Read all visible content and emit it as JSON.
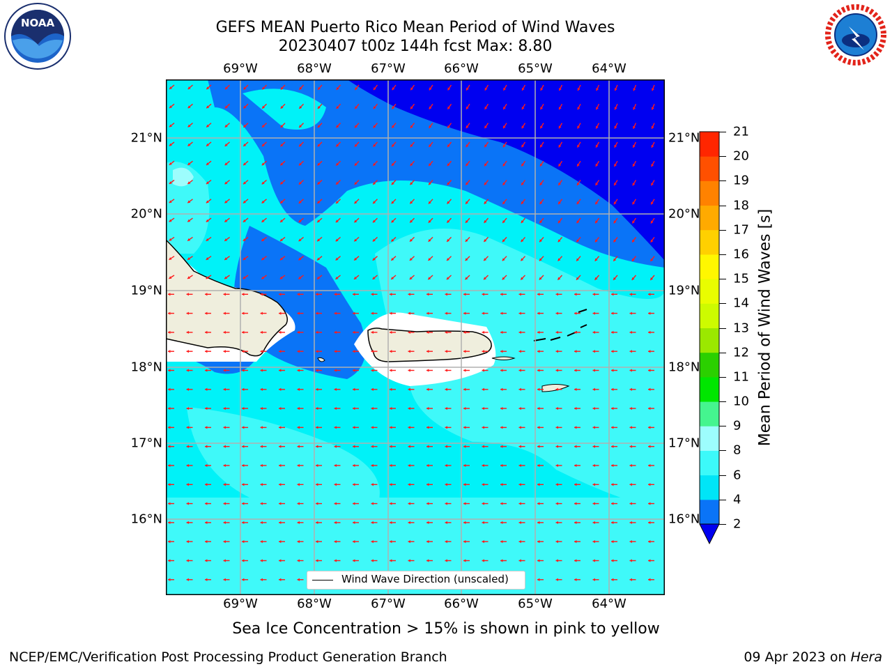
{
  "title": {
    "line1": "GEFS MEAN Puerto Rico Mean Period of Wind Waves",
    "line2": "20230407 t00z 144h fcst   Max: 8.80"
  },
  "axes": {
    "lon_ticks": [
      "69°W",
      "68°W",
      "67°W",
      "66°W",
      "65°W",
      "64°W"
    ],
    "lat_ticks": [
      "21°N",
      "20°N",
      "19°N",
      "18°N",
      "17°N",
      "16°N"
    ]
  },
  "legend": {
    "label": "Wind Wave Direction (unscaled)"
  },
  "colorbar": {
    "label": "Mean Period of Wind Waves [s]",
    "ticks": [
      "2",
      "4",
      "6",
      "8",
      "9",
      "10",
      "11",
      "12",
      "13",
      "14",
      "15",
      "16",
      "17",
      "18",
      "19",
      "20",
      "21"
    ],
    "colors": [
      "#0a74f7",
      "#00e5f7",
      "#3cf9f9",
      "#9dfdfd",
      "#45f58f",
      "#00e600",
      "#2bd000",
      "#9be800",
      "#cdfb00",
      "#e9fd00",
      "#fff700",
      "#ffd000",
      "#ffaa00",
      "#ff8200",
      "#ff5000",
      "#ff2600",
      "#ff0000"
    ],
    "under_color": "#0000f0"
  },
  "chart_data": {
    "type": "heatmap",
    "title": "GEFS MEAN Puerto Rico Mean Period of Wind Waves",
    "subtitle": "20230407 t00z 144h fcst   Max: 8.80",
    "x_range": [
      "70°W",
      "63.3°W"
    ],
    "y_range": [
      "15°N",
      "21.7°N"
    ],
    "colorbar_label": "Mean Period of Wind Waves [s]",
    "max_value": 8.8,
    "legend": [
      "Wind Wave Direction (unscaled)"
    ],
    "grid": true
  },
  "notes": {
    "sea_ice": "Sea Ice Concentration > 15% is shown in pink to yellow"
  },
  "footer": {
    "left": "NCEP/EMC/Verification Post Processing Product Generation Branch",
    "date": "09 Apr 2023 on ",
    "machine": "Hera"
  },
  "logos": {
    "noaa": "NOAA",
    "nws": "NATIONAL WEATHER SERVICE"
  }
}
